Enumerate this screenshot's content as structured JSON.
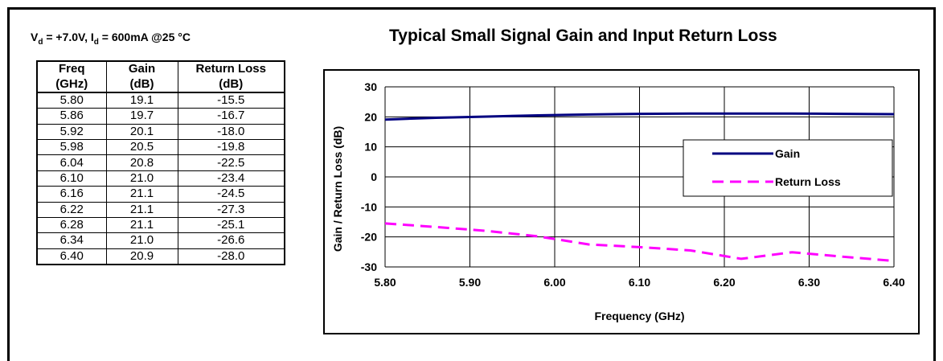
{
  "conditions": {
    "v_label": "V",
    "v_sub": "d",
    "v_rest": " = +7.0V, I",
    "i_sub": "d",
    "i_rest": " = 600mA @25 °C"
  },
  "table": {
    "headers": [
      [
        "Freq",
        "(GHz)"
      ],
      [
        "Gain",
        "(dB)"
      ],
      [
        "Return Loss",
        "(dB)"
      ]
    ],
    "rows": [
      [
        "5.80",
        "19.1",
        "-15.5"
      ],
      [
        "5.86",
        "19.7",
        "-16.7"
      ],
      [
        "5.92",
        "20.1",
        "-18.0"
      ],
      [
        "5.98",
        "20.5",
        "-19.8"
      ],
      [
        "6.04",
        "20.8",
        "-22.5"
      ],
      [
        "6.10",
        "21.0",
        "-23.4"
      ],
      [
        "6.16",
        "21.1",
        "-24.5"
      ],
      [
        "6.22",
        "21.1",
        "-27.3"
      ],
      [
        "6.28",
        "21.1",
        "-25.1"
      ],
      [
        "6.34",
        "21.0",
        "-26.6"
      ],
      [
        "6.40",
        "20.9",
        "-28.0"
      ]
    ]
  },
  "chart_data": {
    "type": "line",
    "title": "Typical Small Signal Gain and Input Return Loss",
    "xlabel": "Frequency (GHz)",
    "ylabel": "Gain / Return Loss (dB)",
    "xlim": [
      5.8,
      6.4
    ],
    "ylim": [
      -30,
      30
    ],
    "xticks": [
      "5.80",
      "5.90",
      "6.00",
      "6.10",
      "6.20",
      "6.30",
      "6.40"
    ],
    "yticks": [
      "30",
      "20",
      "10",
      "0",
      "-10",
      "-20",
      "-30"
    ],
    "grid": true,
    "legend_position": "right",
    "x": [
      5.8,
      5.86,
      5.92,
      5.98,
      6.04,
      6.1,
      6.16,
      6.22,
      6.28,
      6.34,
      6.4
    ],
    "series": [
      {
        "name": "Gain",
        "color": "#000080",
        "style": "solid",
        "values": [
          19.1,
          19.7,
          20.1,
          20.5,
          20.8,
          21.0,
          21.1,
          21.1,
          21.1,
          21.0,
          20.9
        ]
      },
      {
        "name": "Return Loss",
        "color": "#ff00ff",
        "style": "dashed",
        "values": [
          -15.5,
          -16.7,
          -18.0,
          -19.8,
          -22.5,
          -23.4,
          -24.5,
          -27.3,
          -25.1,
          -26.6,
          -28.0
        ]
      }
    ]
  }
}
